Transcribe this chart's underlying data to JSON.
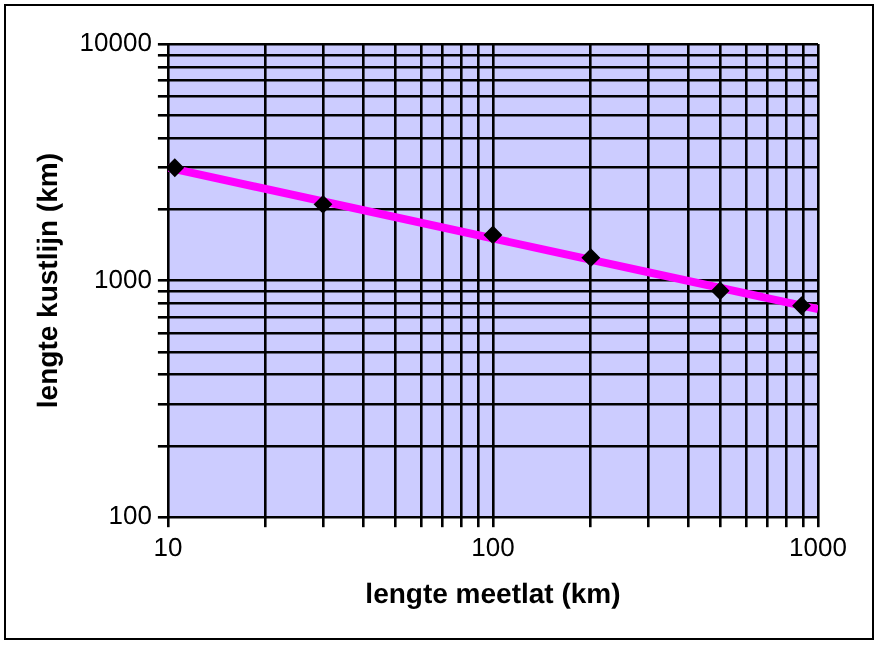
{
  "chart_data": {
    "type": "scatter",
    "xlabel": "lengte meetlat (km)",
    "ylabel": "lengte kustlijn (km)",
    "log": "xy",
    "grid": true,
    "legend": false,
    "marker": "diamond",
    "xlim": [
      10,
      1000
    ],
    "ylim": [
      100,
      10000
    ],
    "xticks": [
      10,
      {
        "value": 20,
        "label": null
      },
      {
        "value": 30,
        "label": null
      },
      {
        "value": 40,
        "label": null
      },
      {
        "value": 50,
        "label": null
      },
      {
        "value": 60,
        "label": null
      },
      {
        "value": 70,
        "label": null
      },
      {
        "value": 80,
        "label": null
      },
      {
        "value": 90,
        "label": null
      },
      100,
      {
        "value": 200,
        "label": null
      },
      {
        "value": 300,
        "label": null
      },
      {
        "value": 400,
        "label": null
      },
      {
        "value": 500,
        "label": null
      },
      {
        "value": 600,
        "label": null
      },
      {
        "value": 700,
        "label": null
      },
      {
        "value": 800,
        "label": null
      },
      {
        "value": 900,
        "label": null
      },
      1000
    ],
    "yticks": [
      100,
      {
        "value": 200,
        "label": null
      },
      {
        "value": 300,
        "label": null
      },
      {
        "value": 400,
        "label": null
      },
      {
        "value": 500,
        "label": null
      },
      {
        "value": 600,
        "label": null
      },
      {
        "value": 700,
        "label": null
      },
      {
        "value": 800,
        "label": null
      },
      {
        "value": 900,
        "label": null
      },
      1000,
      {
        "value": 2000,
        "label": null
      },
      {
        "value": 3000,
        "label": null
      },
      {
        "value": 4000,
        "label": null
      },
      {
        "value": 5000,
        "label": null
      },
      {
        "value": 6000,
        "label": null
      },
      {
        "value": 7000,
        "label": null
      },
      {
        "value": 8000,
        "label": null
      },
      {
        "value": 9000,
        "label": null
      },
      10000
    ],
    "series": [
      {
        "color": "#000000",
        "x": [
          10.5,
          30,
          100,
          200,
          500,
          890
        ],
        "values": [
          3000,
          2100,
          1560,
          1250,
          905,
          783
        ]
      },
      {
        "type": "line",
        "color": "#ff00ff",
        "marker": "none",
        "x": [
          10,
          1000
        ],
        "values": [
          3000,
          757
        ]
      }
    ]
  }
}
